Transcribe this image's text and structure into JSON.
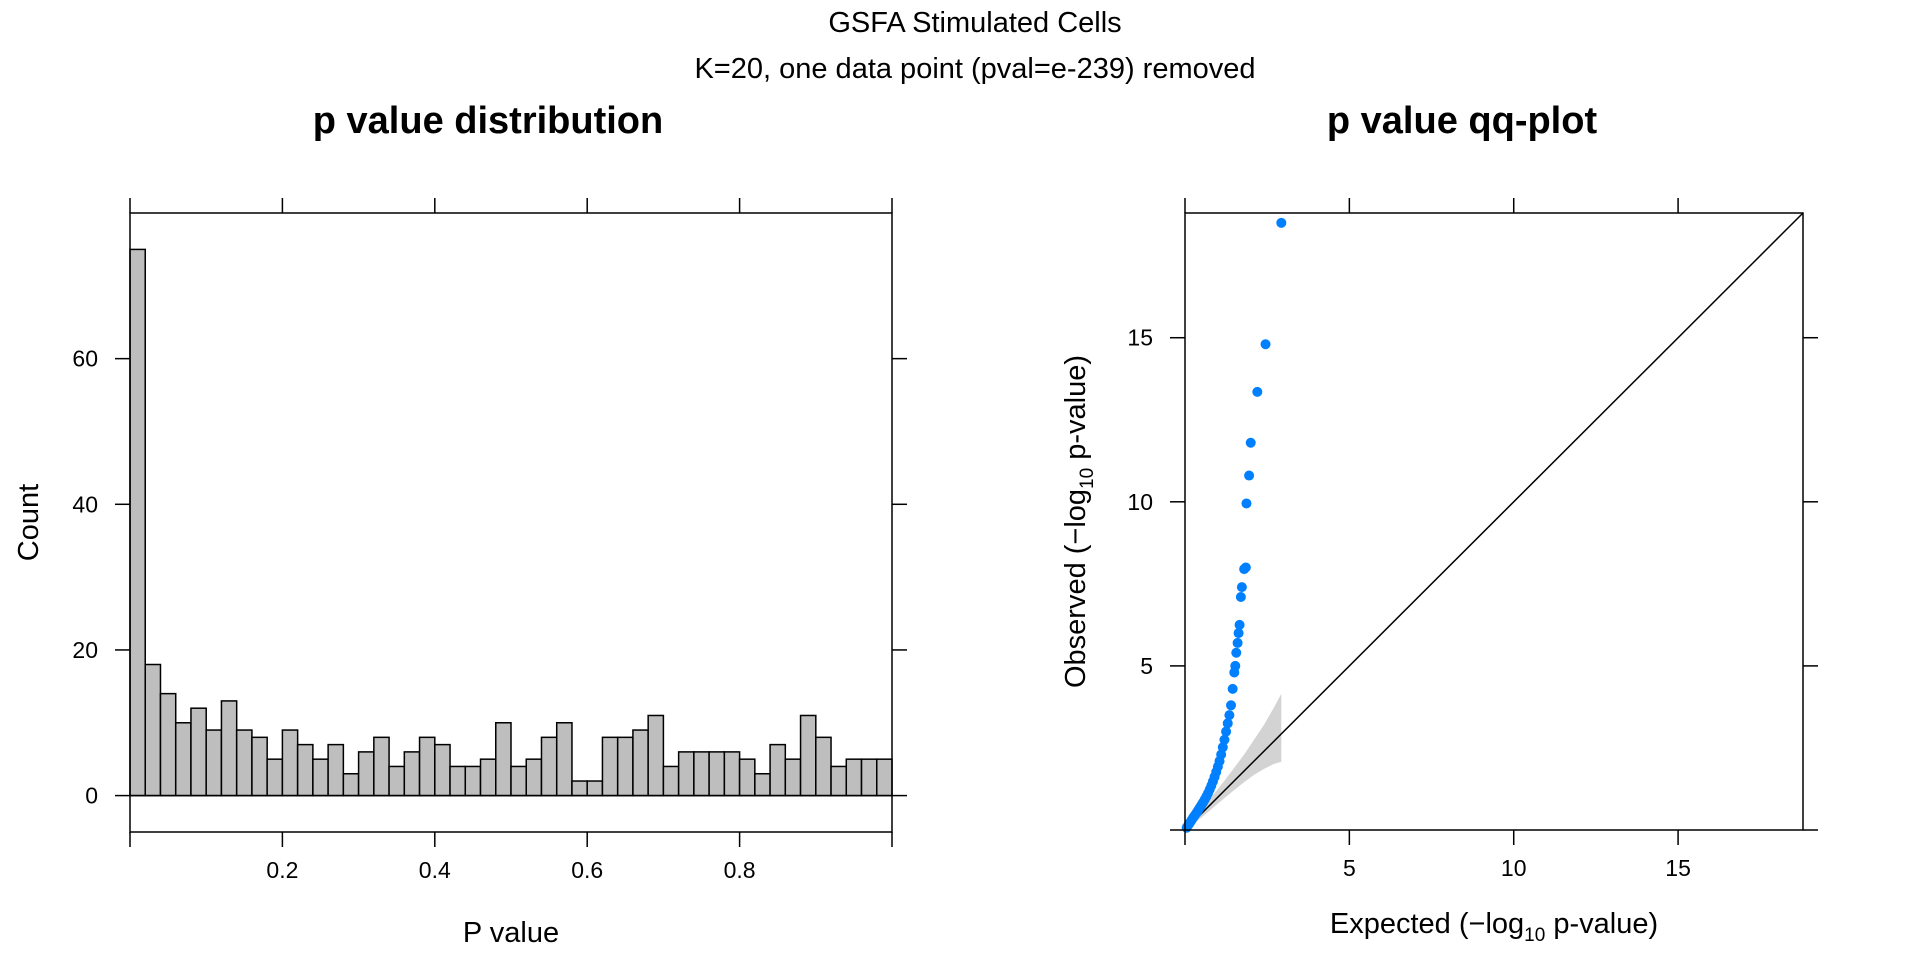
{
  "figure": {
    "title": "GSFA Stimulated Cells",
    "subtitle": "K=20, one data point (pval=e-239) removed"
  },
  "chart_data": [
    {
      "type": "bar",
      "title": "p value distribution",
      "xlabel": "P value",
      "ylabel": "Count",
      "bin_width": 0.02,
      "bin_start": 0,
      "xlim": [
        0,
        1
      ],
      "ylim": [
        -5,
        80
      ],
      "x_ticks": [
        {
          "value": 0.2,
          "label": "0.2"
        },
        {
          "value": 0.4,
          "label": "0.4"
        },
        {
          "value": 0.6,
          "label": "0.6"
        },
        {
          "value": 0.8,
          "label": "0.8"
        }
      ],
      "y_ticks": [
        {
          "value": 0,
          "label": "0"
        },
        {
          "value": 20,
          "label": "20"
        },
        {
          "value": 40,
          "label": "40"
        },
        {
          "value": 60,
          "label": "60"
        }
      ],
      "values": [
        75,
        18,
        14,
        10,
        12,
        9,
        13,
        9,
        8,
        5,
        9,
        7,
        5,
        7,
        3,
        6,
        8,
        4,
        6,
        8,
        7,
        4,
        4,
        5,
        10,
        4,
        5,
        8,
        10,
        2,
        2,
        8,
        8,
        9,
        11,
        4,
        6,
        6,
        6,
        6,
        5,
        3,
        7,
        5,
        11,
        8,
        4,
        5,
        5,
        5
      ],
      "colors": {
        "bar_fill": "#bebebe",
        "bar_stroke": "#000000"
      }
    },
    {
      "type": "scatter",
      "title": "p value qq-plot",
      "xlabel_prefix": "Expected (",
      "xlabel_minus": "−",
      "xlabel_log": "log",
      "xlabel_sub": "10",
      "xlabel_suffix": " p-value)",
      "ylabel_prefix": "Observed (",
      "ylabel_minus": "−",
      "ylabel_log": "log",
      "ylabel_sub": "10",
      "ylabel_suffix": " p-value)",
      "xlim": [
        0,
        18.8
      ],
      "ylim": [
        0,
        18.8
      ],
      "x_ticks": [
        {
          "value": 5,
          "label": "5"
        },
        {
          "value": 10,
          "label": "10"
        },
        {
          "value": 15,
          "label": "15"
        }
      ],
      "y_ticks": [
        {
          "value": 5,
          "label": "5"
        },
        {
          "value": 10,
          "label": "10"
        },
        {
          "value": 15,
          "label": "15"
        }
      ],
      "reference_line": {
        "from": [
          0,
          0
        ],
        "to": [
          18.8,
          18.8
        ]
      },
      "confidence_band": {
        "x": [
          0.0,
          0.3,
          0.6,
          0.9,
          1.2,
          1.5,
          1.8,
          2.1,
          2.4,
          2.7,
          2.93
        ],
        "lower": [
          0.0,
          0.22,
          0.46,
          0.72,
          0.97,
          1.22,
          1.46,
          1.68,
          1.86,
          2.01,
          2.08
        ],
        "upper": [
          0.0,
          0.38,
          0.75,
          1.12,
          1.5,
          1.9,
          2.3,
          2.75,
          3.2,
          3.72,
          4.15
        ]
      },
      "colors": {
        "point": "#0080ff",
        "band": "#d3d3d3",
        "line": "#000000"
      },
      "points": [
        [
          0.05,
          0.07
        ],
        [
          0.1,
          0.15
        ],
        [
          0.15,
          0.22
        ],
        [
          0.2,
          0.3
        ],
        [
          0.25,
          0.38
        ],
        [
          0.3,
          0.45
        ],
        [
          0.35,
          0.52
        ],
        [
          0.4,
          0.6
        ],
        [
          0.45,
          0.68
        ],
        [
          0.5,
          0.76
        ],
        [
          0.55,
          0.84
        ],
        [
          0.6,
          0.93
        ],
        [
          0.65,
          1.02
        ],
        [
          0.7,
          1.12
        ],
        [
          0.75,
          1.23
        ],
        [
          0.8,
          1.35
        ],
        [
          0.85,
          1.48
        ],
        [
          0.9,
          1.62
        ],
        [
          0.95,
          1.77
        ],
        [
          1.0,
          1.93
        ],
        [
          1.05,
          2.1
        ],
        [
          1.1,
          2.3
        ],
        [
          1.15,
          2.52
        ],
        [
          1.2,
          2.75
        ],
        [
          1.25,
          3.0
        ],
        [
          1.3,
          3.25
        ],
        [
          1.35,
          3.5
        ],
        [
          1.4,
          3.8
        ],
        [
          1.45,
          4.3
        ],
        [
          1.5,
          4.8
        ],
        [
          1.53,
          5.0
        ],
        [
          1.56,
          5.4
        ],
        [
          1.6,
          5.7
        ],
        [
          1.63,
          6.0
        ],
        [
          1.66,
          6.25
        ],
        [
          1.7,
          7.1
        ],
        [
          1.73,
          7.4
        ],
        [
          1.8,
          7.95
        ],
        [
          1.85,
          8.0
        ],
        [
          1.87,
          9.95
        ],
        [
          1.95,
          10.8
        ],
        [
          2.0,
          11.8
        ],
        [
          2.2,
          13.35
        ],
        [
          2.45,
          14.8
        ],
        [
          2.93,
          18.5
        ]
      ]
    }
  ]
}
